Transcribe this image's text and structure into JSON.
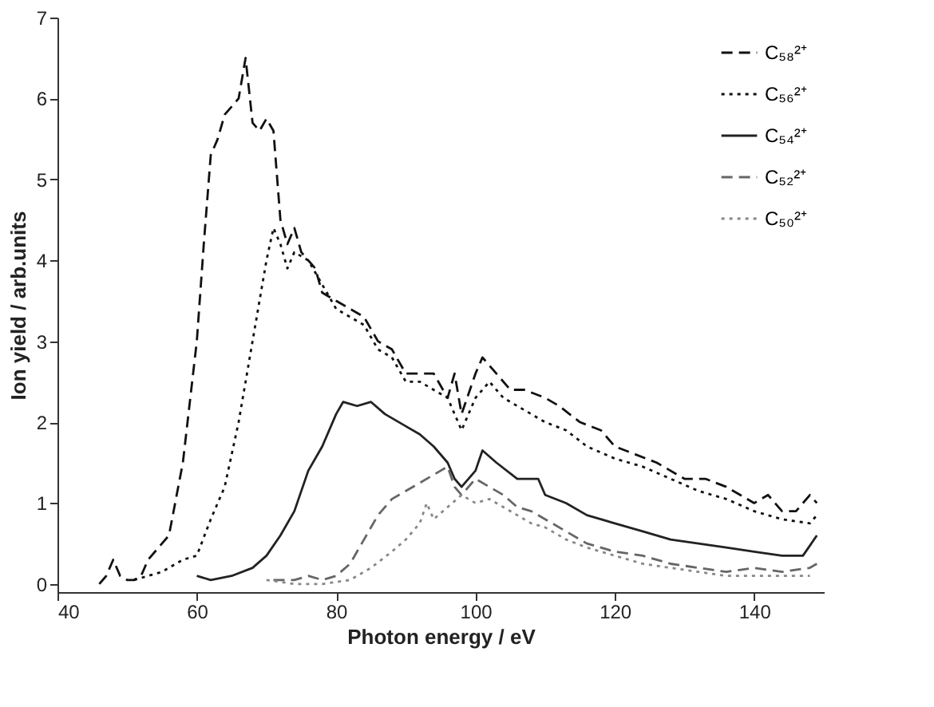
{
  "chart_data": {
    "type": "line",
    "xlabel": "Photon energy /  eV",
    "ylabel": "Ion yield  /  arb.units",
    "xlim": [
      40,
      150
    ],
    "ylim": [
      -0.1,
      7
    ],
    "xticks": [
      40,
      60,
      80,
      100,
      120,
      140
    ],
    "yticks": [
      0,
      1,
      2,
      3,
      4,
      5,
      6,
      7
    ],
    "grid": false,
    "legend": "top right",
    "series": [
      {
        "name": "C₅₈²⁺",
        "color": "#111111",
        "line_style": "dashed",
        "x": [
          46,
          47,
          48,
          49,
          50,
          51,
          52,
          53,
          55,
          56,
          58,
          60,
          61,
          62,
          63,
          64,
          65,
          66,
          67,
          68,
          69,
          70,
          71,
          72,
          73,
          74,
          75,
          77,
          78,
          80,
          82,
          84,
          86,
          88,
          90,
          92,
          94,
          96,
          97,
          98,
          100,
          101,
          103,
          105,
          107,
          110,
          112,
          115,
          118,
          120,
          123,
          126,
          130,
          133,
          136,
          138,
          140,
          142,
          144,
          146,
          148,
          149
        ],
        "values": [
          0,
          0.1,
          0.3,
          0.1,
          0.05,
          0.05,
          0.1,
          0.3,
          0.5,
          0.6,
          1.5,
          3.0,
          4.2,
          5.3,
          5.5,
          5.8,
          5.9,
          6.0,
          6.5,
          5.7,
          5.6,
          5.75,
          5.6,
          4.5,
          4.2,
          4.4,
          4.1,
          3.9,
          3.6,
          3.5,
          3.4,
          3.3,
          3.0,
          2.9,
          2.6,
          2.6,
          2.6,
          2.3,
          2.6,
          2.1,
          2.6,
          2.8,
          2.6,
          2.4,
          2.4,
          2.3,
          2.2,
          2.0,
          1.9,
          1.7,
          1.6,
          1.5,
          1.3,
          1.3,
          1.2,
          1.1,
          1.0,
          1.1,
          0.9,
          0.9,
          1.1,
          1.0
        ]
      },
      {
        "name": "C₅₆²⁺",
        "color": "#111111",
        "line_style": "dotted",
        "x": [
          51,
          55,
          58,
          60,
          62,
          64,
          66,
          68,
          70,
          71,
          72,
          73,
          74,
          76,
          78,
          80,
          82,
          84,
          86,
          88,
          90,
          92,
          94,
          96,
          98,
          100,
          102,
          104,
          106,
          108,
          110,
          113,
          116,
          120,
          124,
          128,
          132,
          136,
          140,
          144,
          148,
          149
        ],
        "values": [
          0.05,
          0.15,
          0.3,
          0.35,
          0.8,
          1.2,
          2.0,
          3.0,
          4.0,
          4.4,
          4.2,
          3.9,
          4.1,
          4.0,
          3.7,
          3.4,
          3.3,
          3.2,
          2.9,
          2.8,
          2.5,
          2.5,
          2.4,
          2.3,
          1.9,
          2.3,
          2.5,
          2.3,
          2.2,
          2.1,
          2.0,
          1.9,
          1.7,
          1.55,
          1.45,
          1.3,
          1.15,
          1.05,
          0.9,
          0.8,
          0.75,
          0.85
        ]
      },
      {
        "name": "C₅₄²⁺",
        "color": "#222222",
        "line_style": "solid",
        "x": [
          60,
          62,
          65,
          68,
          70,
          72,
          74,
          76,
          78,
          80,
          81,
          83,
          85,
          87,
          90,
          92,
          94,
          96,
          97,
          98,
          100,
          101,
          103,
          106,
          109,
          110,
          113,
          116,
          120,
          124,
          128,
          132,
          136,
          140,
          144,
          147,
          149
        ],
        "values": [
          0.1,
          0.05,
          0.1,
          0.2,
          0.35,
          0.6,
          0.9,
          1.4,
          1.7,
          2.1,
          2.25,
          2.2,
          2.25,
          2.1,
          1.95,
          1.85,
          1.7,
          1.5,
          1.3,
          1.2,
          1.4,
          1.65,
          1.5,
          1.3,
          1.3,
          1.1,
          1.0,
          0.85,
          0.75,
          0.65,
          0.55,
          0.5,
          0.45,
          0.4,
          0.35,
          0.35,
          0.6
        ]
      },
      {
        "name": "C₅₂²⁺",
        "color": "#666666",
        "line_style": "dashed",
        "x": [
          71,
          74,
          76,
          78,
          80,
          82,
          84,
          86,
          88,
          90,
          92,
          94,
          96,
          97,
          98,
          100,
          102,
          104,
          106,
          108,
          110,
          113,
          116,
          120,
          124,
          128,
          132,
          136,
          140,
          144,
          148,
          149
        ],
        "values": [
          0.05,
          0.05,
          0.1,
          0.05,
          0.1,
          0.25,
          0.55,
          0.85,
          1.05,
          1.15,
          1.25,
          1.35,
          1.45,
          1.2,
          1.1,
          1.3,
          1.2,
          1.1,
          0.95,
          0.9,
          0.8,
          0.65,
          0.5,
          0.4,
          0.35,
          0.25,
          0.2,
          0.15,
          0.2,
          0.15,
          0.2,
          0.25
        ]
      },
      {
        "name": "C₅₀²⁺",
        "color": "#888888",
        "line_style": "dotted",
        "x": [
          70,
          74,
          78,
          82,
          85,
          88,
          90,
          92,
          93,
          94,
          96,
          98,
          100,
          102,
          104,
          106,
          108,
          110,
          113,
          116,
          120,
          124,
          128,
          132,
          136,
          140,
          144,
          148
        ],
        "values": [
          0.05,
          0.0,
          0.0,
          0.05,
          0.2,
          0.4,
          0.55,
          0.75,
          1.0,
          0.8,
          0.95,
          1.1,
          1.0,
          1.05,
          0.95,
          0.85,
          0.75,
          0.7,
          0.55,
          0.45,
          0.35,
          0.25,
          0.2,
          0.15,
          0.1,
          0.1,
          0.1,
          0.1
        ]
      }
    ]
  }
}
